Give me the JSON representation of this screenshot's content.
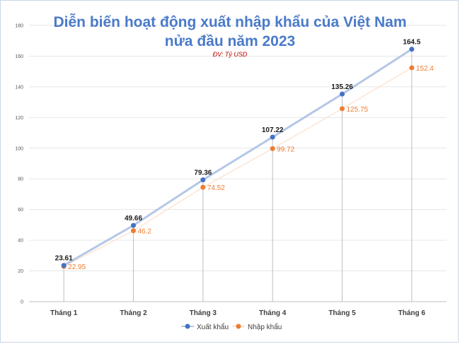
{
  "chart_data": {
    "type": "line",
    "title_line1": "Diễn biến hoạt động xuất nhập khẩu của Việt Nam",
    "title_line2": "nửa đầu năm 2023",
    "unit": "ĐV: Tỷ USD",
    "categories": [
      "Tháng 1",
      "Tháng 2",
      "Tháng 3",
      "Tháng 4",
      "Tháng 5",
      "Tháng 6"
    ],
    "yticks": [
      0,
      20,
      40,
      60,
      80,
      100,
      120,
      140,
      160,
      180
    ],
    "ylim": [
      0,
      180
    ],
    "grid": true,
    "legend_position": "bottom",
    "series": [
      {
        "name": "Xuất khẩu",
        "values": [
          23.61,
          49.66,
          79.36,
          107.22,
          135.26,
          164.5
        ],
        "labels": [
          "23.61",
          "49.66",
          "79.36",
          "107.22",
          "135.26",
          "164.5"
        ],
        "color": "#4472c4",
        "line_color": "#b4c7e7"
      },
      {
        "name": "Nhập khẩu",
        "values": [
          22.95,
          46.2,
          74.52,
          99.72,
          125.75,
          152.4
        ],
        "labels": [
          "22.95",
          "46.2",
          "74.52",
          "99.72",
          "125.75",
          "152.4"
        ],
        "color": "#ed7d31",
        "line_color": "#fbe5d6"
      }
    ]
  }
}
